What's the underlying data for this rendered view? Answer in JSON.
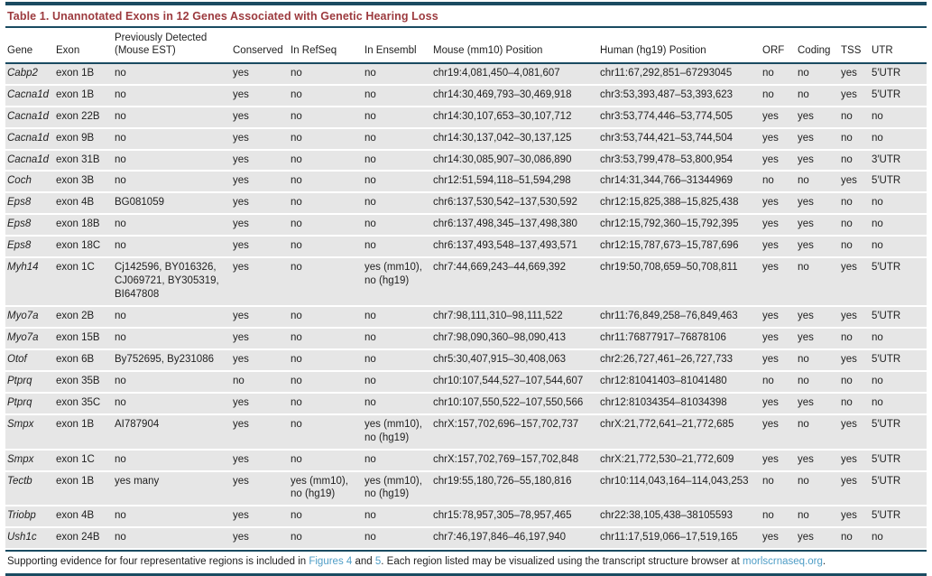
{
  "colors": {
    "accent_rule": "#1A4B61",
    "title_red": "#9C3A3E",
    "row_gray": "#E6E6E6",
    "link_blue": "#4E9DC6"
  },
  "table": {
    "title": "Table 1. Unannotated Exons in 12 Genes Associated with Genetic Hearing Loss",
    "columns": [
      "Gene",
      "Exon",
      "Previously Detected (Mouse EST)",
      "Conserved",
      "In RefSeq",
      "In Ensembl",
      "Mouse (mm10) Position",
      "Human (hg19) Position",
      "ORF",
      "Coding",
      "TSS",
      "UTR"
    ],
    "rows": [
      [
        "Cabp2",
        "exon 1B",
        "no",
        "yes",
        "no",
        "no",
        "chr19:4,081,450–4,081,607",
        "chr11:67,292,851–67293045",
        "no",
        "no",
        "yes",
        "5′UTR"
      ],
      [
        "Cacna1d",
        "exon 1B",
        "no",
        "yes",
        "no",
        "no",
        "chr14:30,469,793–30,469,918",
        "chr3:53,393,487–53,393,623",
        "no",
        "no",
        "yes",
        "5′UTR"
      ],
      [
        "Cacna1d",
        "exon 22B",
        "no",
        "yes",
        "no",
        "no",
        "chr14:30,107,653–30,107,712",
        "chr3:53,774,446–53,774,505",
        "yes",
        "yes",
        "no",
        "no"
      ],
      [
        "Cacna1d",
        "exon 9B",
        "no",
        "yes",
        "no",
        "no",
        "chr14:30,137,042–30,137,125",
        "chr3:53,744,421–53,744,504",
        "yes",
        "yes",
        "no",
        "no"
      ],
      [
        "Cacna1d",
        "exon 31B",
        "no",
        "yes",
        "no",
        "no",
        "chr14:30,085,907–30,086,890",
        "chr3:53,799,478–53,800,954",
        "yes",
        "yes",
        "no",
        "3′UTR"
      ],
      [
        "Coch",
        "exon 3B",
        "no",
        "yes",
        "no",
        "no",
        "chr12:51,594,118–51,594,298",
        "chr14:31,344,766–31344969",
        "no",
        "no",
        "yes",
        "5′UTR"
      ],
      [
        "Eps8",
        "exon 4B",
        "BG081059",
        "yes",
        "no",
        "no",
        "chr6:137,530,542–137,530,592",
        "chr12:15,825,388–15,825,438",
        "yes",
        "yes",
        "no",
        "no"
      ],
      [
        "Eps8",
        "exon 18B",
        "no",
        "yes",
        "no",
        "no",
        "chr6:137,498,345–137,498,380",
        "chr12:15,792,360–15,792,395",
        "yes",
        "yes",
        "no",
        "no"
      ],
      [
        "Eps8",
        "exon 18C",
        "no",
        "yes",
        "no",
        "no",
        "chr6:137,493,548–137,493,571",
        "chr12:15,787,673–15,787,696",
        "yes",
        "yes",
        "no",
        "no"
      ],
      [
        "Myh14",
        "exon 1C",
        "Cj142596, BY016326, CJ069721, BY305319, BI647808",
        "yes",
        "no",
        "yes (mm10), no (hg19)",
        "chr7:44,669,243–44,669,392",
        "chr19:50,708,659–50,708,811",
        "yes",
        "no",
        "yes",
        "5′UTR"
      ],
      [
        "Myo7a",
        "exon 2B",
        "no",
        "yes",
        "no",
        "no",
        "chr7:98,111,310–98,111,522",
        "chr11:76,849,258–76,849,463",
        "yes",
        "yes",
        "yes",
        "5′UTR"
      ],
      [
        "Myo7a",
        "exon 15B",
        "no",
        "yes",
        "no",
        "no",
        "chr7:98,090,360–98,090,413",
        "chr11:76877917–76878106",
        "yes",
        "yes",
        "no",
        "no"
      ],
      [
        "Otof",
        "exon 6B",
        "By752695, By231086",
        "yes",
        "no",
        "no",
        "chr5:30,407,915–30,408,063",
        "chr2:26,727,461–26,727,733",
        "yes",
        "no",
        "yes",
        "5′UTR"
      ],
      [
        "Ptprq",
        "exon 35B",
        "no",
        "no",
        "no",
        "no",
        "chr10:107,544,527–107,544,607",
        "chr12:81041403–81041480",
        "no",
        "no",
        "no",
        "no"
      ],
      [
        "Ptprq",
        "exon 35C",
        "no",
        "yes",
        "no",
        "no",
        "chr10:107,550,522–107,550,566",
        "chr12:81034354–81034398",
        "yes",
        "yes",
        "no",
        "no"
      ],
      [
        "Smpx",
        "exon 1B",
        "AI787904",
        "yes",
        "no",
        "yes (mm10), no (hg19)",
        "chrX:157,702,696–157,702,737",
        "chrX:21,772,641–21,772,685",
        "yes",
        "no",
        "yes",
        "5′UTR"
      ],
      [
        "Smpx",
        "exon 1C",
        "no",
        "yes",
        "no",
        "no",
        "chrX:157,702,769–157,702,848",
        "chrX:21,772,530–21,772,609",
        "yes",
        "yes",
        "yes",
        "5′UTR"
      ],
      [
        "Tectb",
        "exon 1B",
        "yes many",
        "yes",
        "yes (mm10), no (hg19)",
        "yes (mm10), no (hg19)",
        "chr19:55,180,726–55,180,816",
        "chr10:114,043,164–114,043,253",
        "no",
        "no",
        "yes",
        "5′UTR"
      ],
      [
        "Triobp",
        "exon 4B",
        "no",
        "yes",
        "no",
        "no",
        "chr15:78,957,305–78,957,465",
        "chr22:38,105,438–38105593",
        "no",
        "no",
        "yes",
        "5′UTR"
      ],
      [
        "Ush1c",
        "exon 24B",
        "no",
        "yes",
        "no",
        "no",
        "chr7:46,197,846–46,197,940",
        "chr11:17,519,066–17,519,165",
        "yes",
        "yes",
        "no",
        "no"
      ]
    ]
  },
  "footnote": {
    "text_1": "Supporting evidence for four representative regions is included in ",
    "link_figures4": "Figures 4",
    "text_2": " and ",
    "link_figure5": "5",
    "text_3": ". Each region listed may be visualized using the transcript structure browser at ",
    "link_site": "morlscrnaseq.org",
    "text_4": "."
  }
}
